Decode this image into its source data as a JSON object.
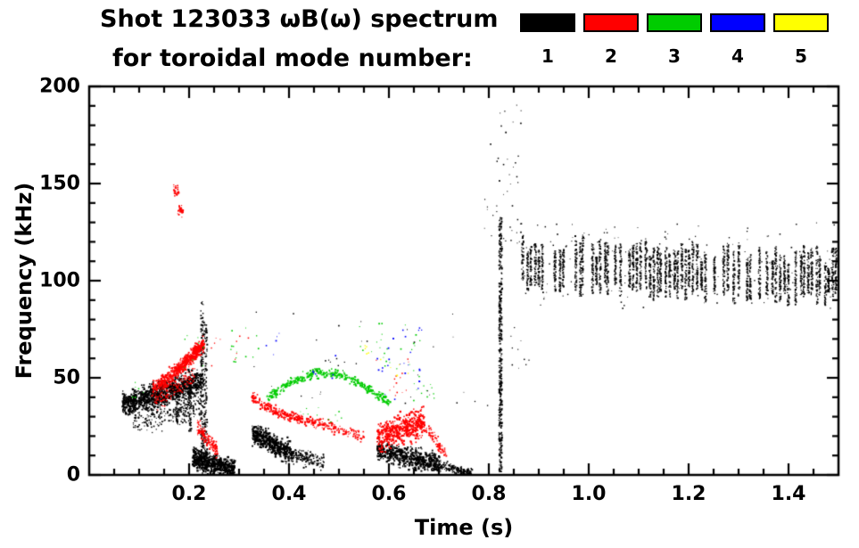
{
  "header": {
    "title_line1": "Shot 123033 ωB(ω) spectrum",
    "title_line2": "for toroidal mode number:"
  },
  "legend": {
    "items": [
      {
        "label": "1",
        "color": "#000000"
      },
      {
        "label": "2",
        "color": "#ff0000"
      },
      {
        "label": "3",
        "color": "#00cc00"
      },
      {
        "label": "4",
        "color": "#0000ff"
      },
      {
        "label": "5",
        "color": "#ffff00"
      }
    ]
  },
  "chart_data": {
    "type": "scatter",
    "title": "Shot 123033 ωB(ω) spectrum for toroidal mode number",
    "xlabel": "Time (s)",
    "ylabel": "Frequency (kHz)",
    "xlim": [
      0.0,
      1.5
    ],
    "ylim": [
      0,
      200
    ],
    "grid": false,
    "legend_position": "top-right",
    "x_major_step": 0.2,
    "x_minor_step": 0.05,
    "y_major_step": 50,
    "y_minor_step": 10,
    "xticks": [
      {
        "v": 0.2,
        "label": "0.2"
      },
      {
        "v": 0.4,
        "label": "0.4"
      },
      {
        "v": 0.6,
        "label": "0.6"
      },
      {
        "v": 0.8,
        "label": "0.8"
      },
      {
        "v": 1.0,
        "label": "1.0"
      },
      {
        "v": 1.2,
        "label": "1.2"
      },
      {
        "v": 1.4,
        "label": "1.4"
      }
    ],
    "yticks": [
      {
        "v": 0,
        "label": "0"
      },
      {
        "v": 50,
        "label": "50"
      },
      {
        "v": 100,
        "label": "100"
      },
      {
        "v": 150,
        "label": "150"
      },
      {
        "v": 200,
        "label": "200"
      }
    ],
    "series": [
      {
        "name": "n=1",
        "color": "#000000",
        "clusters": [
          {
            "kind": "blob",
            "t": [
              0.065,
              0.225
            ],
            "f0": 36,
            "f1": 49,
            "spread": 6,
            "n": 1000,
            "size": 1.6
          },
          {
            "kind": "blob",
            "t": [
              0.085,
              0.225
            ],
            "f0": 28,
            "f1": 36,
            "spread": 7,
            "n": 260,
            "size": 1.3
          },
          {
            "kind": "vline",
            "t": 0.175,
            "f": [
              26,
              48
            ],
            "n": 50
          },
          {
            "kind": "vline",
            "t": 0.2,
            "f": [
              22,
              50
            ],
            "n": 60
          },
          {
            "kind": "vline",
            "t": 0.225,
            "f": [
              5,
              90
            ],
            "n": 160
          },
          {
            "kind": "vline",
            "t": 0.232,
            "f": [
              5,
              78
            ],
            "n": 120
          },
          {
            "kind": "blob",
            "t": [
              0.205,
              0.29
            ],
            "f0": 9,
            "f1": 3,
            "spread": 5,
            "n": 600,
            "size": 1.6
          },
          {
            "kind": "blob",
            "t": [
              0.325,
              0.405
            ],
            "f0": 22,
            "f1": 11,
            "spread": 5,
            "n": 500,
            "size": 1.6
          },
          {
            "kind": "blob",
            "t": [
              0.405,
              0.47
            ],
            "f0": 11,
            "f1": 7,
            "spread": 4,
            "n": 160,
            "size": 1.3
          },
          {
            "kind": "blob",
            "t": [
              0.575,
              0.7
            ],
            "f0": 13,
            "f1": 6,
            "spread": 5,
            "n": 600,
            "size": 1.6
          },
          {
            "kind": "blob",
            "t": [
              0.7,
              0.765
            ],
            "f0": 5,
            "f1": 1,
            "spread": 2.5,
            "n": 180,
            "size": 1.3
          },
          {
            "kind": "vline",
            "t": 0.822,
            "f": [
              2,
              133
            ],
            "n": 420
          },
          {
            "kind": "scatter",
            "t": [
              0.79,
              0.865
            ],
            "f": [
              118,
              192
            ],
            "n": 45,
            "size": 1.2
          },
          {
            "kind": "scatter",
            "t": [
              0.3,
              0.8
            ],
            "f": [
              35,
              85
            ],
            "n": 28,
            "size": 1.1
          },
          {
            "kind": "scatter",
            "t": [
              0.44,
              0.55
            ],
            "f": [
              52,
              60
            ],
            "n": 10,
            "size": 1.1
          },
          {
            "kind": "scatter",
            "t": [
              0.84,
              0.9
            ],
            "f": [
              55,
              85
            ],
            "n": 10,
            "size": 1.1
          },
          {
            "kind": "vstreaks",
            "t": [
              0.862,
              1.5
            ],
            "cols": 78,
            "fc0": 109,
            "fc1": 102,
            "top": [
              5,
              17
            ],
            "bot": [
              8,
              16
            ],
            "skip": 0.18,
            "nper": 55
          },
          {
            "kind": "scatter",
            "t": [
              0.87,
              1.5
            ],
            "f": [
              86,
              130
            ],
            "n": 160,
            "size": 1.1
          }
        ]
      },
      {
        "name": "n=2",
        "color": "#ff0000",
        "clusters": [
          {
            "kind": "path",
            "pts": [
              [
                0.125,
                44
              ],
              [
                0.155,
                50
              ],
              [
                0.185,
                57
              ],
              [
                0.21,
                63
              ],
              [
                0.228,
                68
              ]
            ],
            "jit": 3.5,
            "n": 550,
            "size": 1.6
          },
          {
            "kind": "blob",
            "t": [
              0.13,
              0.21
            ],
            "f0": 38,
            "f1": 52,
            "spread": 5,
            "n": 140,
            "size": 1.2
          },
          {
            "kind": "blob",
            "t": [
              0.168,
              0.178
            ],
            "f0": 147,
            "f1": 146,
            "spread": 3,
            "n": 28,
            "size": 1.4
          },
          {
            "kind": "blob",
            "t": [
              0.176,
              0.186
            ],
            "f0": 137,
            "f1": 135,
            "spread": 3,
            "n": 22,
            "size": 1.4
          },
          {
            "kind": "blob",
            "t": [
              0.215,
              0.255
            ],
            "f0": 25,
            "f1": 13,
            "spread": 4,
            "n": 140,
            "size": 1.4
          },
          {
            "kind": "path",
            "pts": [
              [
                0.325,
                40
              ],
              [
                0.37,
                33
              ],
              [
                0.42,
                29
              ],
              [
                0.47,
                26
              ],
              [
                0.55,
                20
              ]
            ],
            "jit": 2.5,
            "n": 380,
            "size": 1.5
          },
          {
            "kind": "blob",
            "t": [
              0.575,
              0.67
            ],
            "f0": 20,
            "f1": 27,
            "spread": 7,
            "n": 520,
            "size": 1.6
          },
          {
            "kind": "path",
            "pts": [
              [
                0.655,
                30
              ],
              [
                0.685,
                20
              ],
              [
                0.715,
                10
              ]
            ],
            "jit": 3,
            "n": 110,
            "size": 1.3
          },
          {
            "kind": "scatter",
            "t": [
              0.24,
              0.32
            ],
            "f": [
              55,
              75
            ],
            "n": 10,
            "size": 1.1
          },
          {
            "kind": "scatter",
            "t": [
              0.57,
              0.64
            ],
            "f": [
              38,
              60
            ],
            "n": 14,
            "size": 1.1
          }
        ]
      },
      {
        "name": "n=3",
        "color": "#00cc00",
        "clusters": [
          {
            "kind": "path",
            "pts": [
              [
                0.355,
                40
              ],
              [
                0.4,
                48
              ],
              [
                0.45,
                53
              ],
              [
                0.5,
                52
              ],
              [
                0.55,
                46
              ],
              [
                0.6,
                38
              ]
            ],
            "jit": 2.2,
            "n": 380,
            "size": 1.5
          },
          {
            "kind": "scatter",
            "t": [
              0.28,
              0.34
            ],
            "f": [
              58,
              76
            ],
            "n": 14,
            "size": 1.2
          },
          {
            "kind": "scatter",
            "t": [
              0.54,
              0.67
            ],
            "f": [
              52,
              80
            ],
            "n": 26,
            "size": 1.2
          },
          {
            "kind": "scatter",
            "t": [
              0.18,
              0.23
            ],
            "f": [
              55,
              72
            ],
            "n": 8,
            "size": 1.1
          },
          {
            "kind": "scatter",
            "t": [
              0.42,
              0.52
            ],
            "f": [
              27,
              36
            ],
            "n": 12,
            "size": 1.1
          },
          {
            "kind": "scatter",
            "t": [
              0.62,
              0.69
            ],
            "f": [
              38,
              52
            ],
            "n": 12,
            "size": 1.1
          },
          {
            "kind": "scatter",
            "t": [
              0.08,
              0.12
            ],
            "f": [
              38,
              48
            ],
            "n": 6,
            "size": 1.1
          }
        ]
      },
      {
        "name": "n=4",
        "color": "#0000ff",
        "clusters": [
          {
            "kind": "scatter",
            "t": [
              0.575,
              0.665
            ],
            "f": [
              38,
              76
            ],
            "n": 24,
            "size": 1.3
          },
          {
            "kind": "scatter",
            "t": [
              0.44,
              0.5
            ],
            "f": [
              50,
              62
            ],
            "n": 6,
            "size": 1.2
          },
          {
            "kind": "scatter",
            "t": [
              0.33,
              0.38
            ],
            "f": [
              62,
              74
            ],
            "n": 5,
            "size": 1.2
          }
        ]
      },
      {
        "name": "n=5",
        "color": "#ffff00",
        "clusters": [
          {
            "kind": "scatter",
            "t": [
              0.55,
              0.59
            ],
            "f": [
              58,
              68
            ],
            "n": 6,
            "size": 1.5
          },
          {
            "kind": "scatter",
            "t": [
              0.6,
              0.645
            ],
            "f": [
              50,
              58
            ],
            "n": 4,
            "size": 1.4
          }
        ]
      }
    ]
  }
}
